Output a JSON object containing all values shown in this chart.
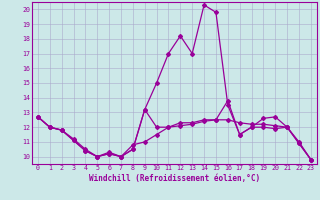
{
  "xlabel": "Windchill (Refroidissement éolien,°C)",
  "background_color": "#cce8e8",
  "line_color": "#990099",
  "grid_color": "#aaaacc",
  "xlim": [
    -0.5,
    23.5
  ],
  "ylim": [
    9.5,
    20.5
  ],
  "yticks": [
    10,
    11,
    12,
    13,
    14,
    15,
    16,
    17,
    18,
    19,
    20
  ],
  "xticks": [
    0,
    1,
    2,
    3,
    4,
    5,
    6,
    7,
    8,
    9,
    10,
    11,
    12,
    13,
    14,
    15,
    16,
    17,
    18,
    19,
    20,
    21,
    22,
    23
  ],
  "line1_x": [
    0,
    1,
    2,
    3,
    4,
    5,
    6,
    7,
    8,
    9,
    10,
    11,
    12,
    13,
    14,
    15,
    16,
    17,
    18,
    19,
    20,
    21,
    22,
    23
  ],
  "line1_y": [
    12.7,
    12.0,
    11.8,
    11.1,
    10.4,
    10.0,
    10.2,
    10.0,
    10.5,
    13.2,
    12.0,
    12.0,
    12.1,
    12.2,
    12.4,
    12.5,
    13.8,
    11.5,
    12.0,
    12.0,
    11.9,
    12.0,
    10.9,
    9.8
  ],
  "line2_x": [
    0,
    1,
    2,
    3,
    4,
    5,
    6,
    7,
    8,
    9,
    10,
    11,
    12,
    13,
    14,
    15,
    16,
    17,
    18,
    19,
    20,
    21,
    22,
    23
  ],
  "line2_y": [
    12.7,
    12.0,
    11.8,
    11.2,
    10.5,
    10.0,
    10.3,
    10.0,
    10.8,
    11.0,
    11.5,
    12.0,
    12.3,
    12.3,
    12.5,
    12.5,
    12.5,
    12.3,
    12.2,
    12.2,
    12.1,
    12.0,
    11.0,
    9.8
  ],
  "line3_x": [
    0,
    1,
    2,
    3,
    4,
    5,
    6,
    7,
    8,
    9,
    10,
    11,
    12,
    13,
    14,
    15,
    16,
    17,
    18,
    19,
    20,
    21,
    22,
    23
  ],
  "line3_y": [
    12.7,
    12.0,
    11.8,
    11.1,
    10.4,
    10.0,
    10.2,
    10.0,
    10.5,
    13.2,
    15.0,
    17.0,
    18.2,
    17.0,
    20.3,
    19.8,
    13.5,
    11.5,
    12.0,
    12.6,
    12.7,
    12.0,
    10.9,
    9.8
  ],
  "xlabel_fontsize": 5.5,
  "tick_fontsize": 4.8,
  "marker_size": 2.0
}
